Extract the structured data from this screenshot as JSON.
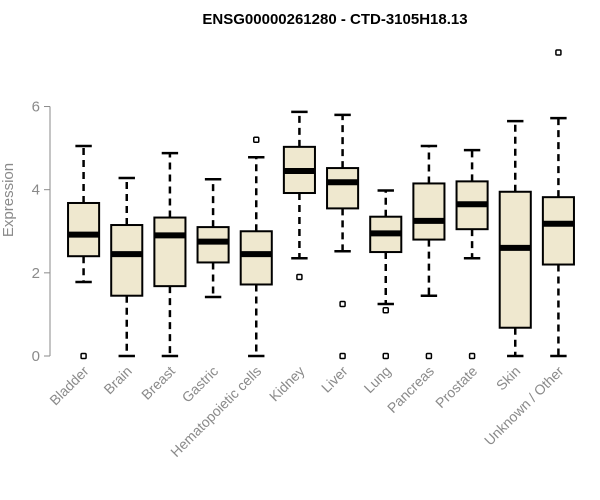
{
  "chart_data": {
    "type": "boxplot",
    "title": "ENSG00000261280 - CTD-3105H18.13",
    "ylabel": "Expression",
    "xlabel": "",
    "ylim": [
      0,
      7.6
    ],
    "yticks": [
      0,
      2,
      4,
      6
    ],
    "grid": false,
    "colors": {
      "box_fill": "#efe8cf",
      "stroke": "#000000",
      "axis": "#8a8a8a"
    },
    "categories": [
      "Bladder",
      "Brain",
      "Breast",
      "Gastric",
      "Hematopoietic cells",
      "Kidney",
      "Liver",
      "Lung",
      "Pancreas",
      "Prostate",
      "Skin",
      "Unknown / Other"
    ],
    "boxes": [
      {
        "whisker_low": 1.78,
        "q1": 2.4,
        "median": 2.92,
        "q3": 3.68,
        "whisker_high": 5.05,
        "outliers": [
          0.0
        ]
      },
      {
        "whisker_low": 0.0,
        "q1": 1.45,
        "median": 2.45,
        "q3": 3.15,
        "whisker_high": 4.28,
        "outliers": []
      },
      {
        "whisker_low": 0.0,
        "q1": 1.68,
        "median": 2.9,
        "q3": 3.33,
        "whisker_high": 4.88,
        "outliers": []
      },
      {
        "whisker_low": 1.42,
        "q1": 2.25,
        "median": 2.75,
        "q3": 3.1,
        "whisker_high": 4.25,
        "outliers": []
      },
      {
        "whisker_low": 0.0,
        "q1": 1.72,
        "median": 2.45,
        "q3": 3.0,
        "whisker_high": 4.78,
        "outliers": [
          5.2
        ]
      },
      {
        "whisker_low": 2.35,
        "q1": 3.92,
        "median": 4.45,
        "q3": 5.03,
        "whisker_high": 5.87,
        "outliers": [
          1.9
        ]
      },
      {
        "whisker_low": 2.52,
        "q1": 3.55,
        "median": 4.18,
        "q3": 4.52,
        "whisker_high": 5.8,
        "outliers": [
          1.25,
          0.0
        ]
      },
      {
        "whisker_low": 1.25,
        "q1": 2.5,
        "median": 2.95,
        "q3": 3.35,
        "whisker_high": 3.98,
        "outliers": [
          1.1,
          0.0
        ]
      },
      {
        "whisker_low": 1.45,
        "q1": 2.8,
        "median": 3.25,
        "q3": 4.15,
        "whisker_high": 5.05,
        "outliers": [
          0.0
        ]
      },
      {
        "whisker_low": 2.35,
        "q1": 3.05,
        "median": 3.65,
        "q3": 4.2,
        "whisker_high": 4.95,
        "outliers": [
          0.0
        ]
      },
      {
        "whisker_low": 0.0,
        "q1": 0.68,
        "median": 2.6,
        "q3": 3.95,
        "whisker_high": 5.65,
        "outliers": []
      },
      {
        "whisker_low": 0.0,
        "q1": 2.2,
        "median": 3.18,
        "q3": 3.82,
        "whisker_high": 5.72,
        "outliers": [
          7.3
        ]
      }
    ]
  }
}
